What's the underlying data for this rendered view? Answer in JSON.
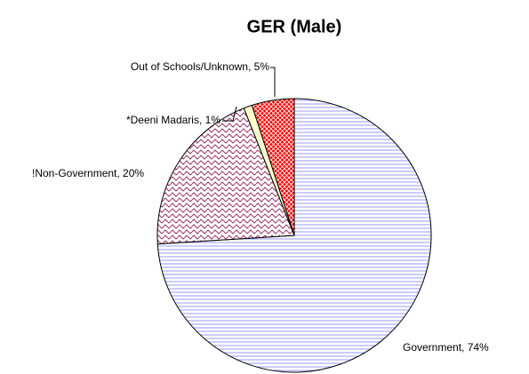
{
  "chart_data": {
    "type": "pie",
    "title": "GER (Male)",
    "categories": [
      "Government",
      "!Non-Government",
      "*Deeni Madaris",
      "Out of Schools/Unknown"
    ],
    "values": [
      74,
      20,
      1,
      5
    ],
    "value_labels": [
      "Government, 74%",
      "!Non-Government, 20%",
      "*Deeni Madaris, 1%",
      "Out of Schools/Unknown, 5%"
    ],
    "colors": [
      "#9999ff",
      "#993366",
      "#ffffcc",
      "#ff0000"
    ],
    "fill_patterns": [
      "horizontal-lines",
      "waves",
      "solid",
      "crosshatch"
    ]
  }
}
